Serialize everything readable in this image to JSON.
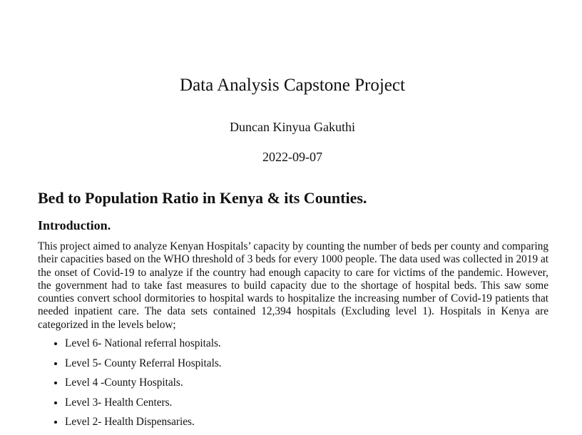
{
  "document": {
    "title": "Data Analysis Capstone Project",
    "author": "Duncan Kinyua Gakuthi",
    "date": "2022-09-07",
    "section_heading": "Bed to Population Ratio in Kenya & its Counties.",
    "subsection_heading": "Introduction.",
    "paragraph": "This project aimed to analyze Kenyan Hospitals’ capacity by counting the number of beds per county and comparing their capacities based on the WHO threshold of 3 beds for every 1000 people. The data used was collected in 2019 at the onset of Covid-19 to analyze if the country had enough capacity to care for victims of the pandemic. However, the government had to take fast measures to build capacity due to the shortage of hospital beds. This saw some counties convert school dormitories to hospital wards to hospitalize the increasing number of Covid-19 patients that needed inpatient care. The data sets contained 12,394 hospitals (Excluding level 1). Hospitals in Kenya are categorized in the levels below;",
    "list": [
      "Level 6- National referral hospitals.",
      "Level 5- County Referral Hospitals.",
      "Level 4 -County Hospitals.",
      "Level 3- Health Centers.",
      "Level 2- Health Dispensaries."
    ]
  }
}
